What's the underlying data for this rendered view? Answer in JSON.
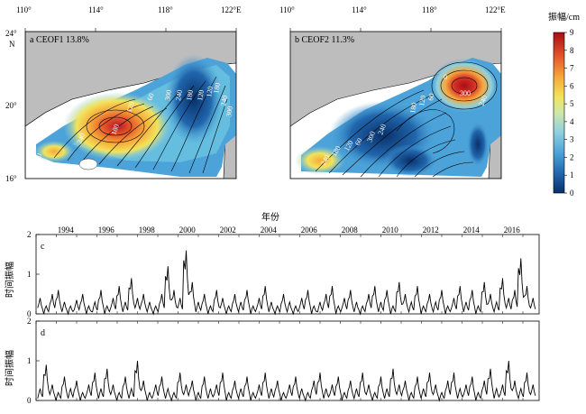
{
  "maps": {
    "lon_ticks": [
      "110°",
      "114°",
      "118°",
      "122°E"
    ],
    "lat_ticks": [
      "24°",
      "20°",
      "16°"
    ],
    "lat_suffix": "N",
    "panel_a": {
      "label": "a  CEOF1 13.8%",
      "contour_labels": [
        "0",
        "240",
        "180",
        "120",
        "60",
        "300",
        "240",
        "180",
        "120",
        "120",
        "180",
        "240",
        "300"
      ]
    },
    "panel_b": {
      "label": "b  CEOF2 11.3%",
      "contour_labels": [
        "0",
        "300",
        "240",
        "60",
        "120",
        "180",
        "240",
        "300",
        "60",
        "120",
        "180",
        "240"
      ]
    }
  },
  "colorbar": {
    "title": "振幅/cm",
    "ticks": [
      "9",
      "8",
      "7",
      "6",
      "5",
      "4",
      "3",
      "2",
      "1",
      "0"
    ],
    "colors": [
      "#08306b",
      "#1a5fb0",
      "#3d94d1",
      "#6cc3e0",
      "#a6dcd9",
      "#e4e868",
      "#f4b640",
      "#ee7a2d",
      "#d73027",
      "#a50f15"
    ]
  },
  "timeseries": {
    "year_label": "年份",
    "years": [
      "1994",
      "1996",
      "1998",
      "2000",
      "2002",
      "2004",
      "2006",
      "2008",
      "2010",
      "2012",
      "2014",
      "2016"
    ],
    "ylabel": "时间振幅",
    "ylim": [
      0,
      2
    ],
    "yticks": [
      "2",
      "1",
      "0"
    ],
    "panels": [
      {
        "label": "c"
      },
      {
        "label": "d"
      }
    ]
  },
  "chart_data": [
    {
      "type": "line",
      "title": "c",
      "xlabel": "年份",
      "ylabel": "时间振幅",
      "xlim": [
        1993,
        2017.8
      ],
      "ylim": [
        0,
        2
      ],
      "x": [
        1993.2,
        1993.5,
        1993.8,
        1994.1,
        1994.4,
        1994.7,
        1995.0,
        1995.3,
        1995.6,
        1995.9,
        1996.2,
        1996.5,
        1996.8,
        1997.1,
        1997.4,
        1997.7,
        1998.0,
        1998.3,
        1998.6,
        1998.9,
        1999.2,
        1999.5,
        1999.8,
        2000.1,
        2000.4,
        2000.7,
        2001.0,
        2001.3,
        2001.6,
        2001.9,
        2002.2,
        2002.5,
        2002.8,
        2003.1,
        2003.4,
        2003.7,
        2004.0,
        2004.3,
        2004.6,
        2004.9,
        2005.2,
        2005.5,
        2005.8,
        2006.1,
        2006.4,
        2006.7,
        2007.0,
        2007.3,
        2007.6,
        2007.9,
        2008.2,
        2008.5,
        2008.8,
        2009.1,
        2009.4,
        2009.7,
        2010.0,
        2010.3,
        2010.6,
        2010.9,
        2011.2,
        2011.5,
        2011.8,
        2012.1,
        2012.4,
        2012.7,
        2013.0,
        2013.3,
        2013.6,
        2013.9,
        2014.2,
        2014.5,
        2014.8,
        2015.1,
        2015.4,
        2015.7,
        2016.0,
        2016.3,
        2016.6,
        2016.9,
        2017.2,
        2017.5
      ],
      "values": [
        0.4,
        0.2,
        0.5,
        0.6,
        0.3,
        0.2,
        0.35,
        0.5,
        0.2,
        0.3,
        0.6,
        0.2,
        0.4,
        0.7,
        0.3,
        0.9,
        0.4,
        0.5,
        0.3,
        0.2,
        0.5,
        1.2,
        0.6,
        0.4,
        1.6,
        0.8,
        0.3,
        0.5,
        0.2,
        0.6,
        0.4,
        0.2,
        0.5,
        0.3,
        0.6,
        0.2,
        0.4,
        0.7,
        0.3,
        0.2,
        0.5,
        0.3,
        0.2,
        0.4,
        0.6,
        0.2,
        0.3,
        0.5,
        0.7,
        0.2,
        0.4,
        0.6,
        0.3,
        0.2,
        0.5,
        0.7,
        0.3,
        0.6,
        0.2,
        0.8,
        0.5,
        0.3,
        0.7,
        0.2,
        0.5,
        0.3,
        0.6,
        0.2,
        0.4,
        0.7,
        0.3,
        0.6,
        0.2,
        0.8,
        0.5,
        0.3,
        0.9,
        0.4,
        0.6,
        1.4,
        0.7,
        0.4
      ]
    },
    {
      "type": "line",
      "title": "d",
      "xlabel": "年份",
      "ylabel": "时间振幅",
      "xlim": [
        1993,
        2017.8
      ],
      "ylim": [
        0,
        2
      ],
      "x": [
        1993.2,
        1993.5,
        1993.8,
        1994.1,
        1994.4,
        1994.7,
        1995.0,
        1995.3,
        1995.6,
        1995.9,
        1996.2,
        1996.5,
        1996.8,
        1997.1,
        1997.4,
        1997.7,
        1998.0,
        1998.3,
        1998.6,
        1998.9,
        1999.2,
        1999.5,
        1999.8,
        2000.1,
        2000.4,
        2000.7,
        2001.0,
        2001.3,
        2001.6,
        2001.9,
        2002.2,
        2002.5,
        2002.8,
        2003.1,
        2003.4,
        2003.7,
        2004.0,
        2004.3,
        2004.6,
        2004.9,
        2005.2,
        2005.5,
        2005.8,
        2006.1,
        2006.4,
        2006.7,
        2007.0,
        2007.3,
        2007.6,
        2007.9,
        2008.2,
        2008.5,
        2008.8,
        2009.1,
        2009.4,
        2009.7,
        2010.0,
        2010.3,
        2010.6,
        2010.9,
        2011.2,
        2011.5,
        2011.8,
        2012.1,
        2012.4,
        2012.7,
        2013.0,
        2013.3,
        2013.6,
        2013.9,
        2014.2,
        2014.5,
        2014.8,
        2015.1,
        2015.4,
        2015.7,
        2016.0,
        2016.3,
        2016.6,
        2016.9,
        2017.2,
        2017.5
      ],
      "values": [
        0.3,
        0.9,
        0.4,
        0.2,
        0.6,
        0.3,
        0.5,
        0.2,
        0.4,
        0.7,
        0.3,
        0.8,
        0.4,
        0.2,
        0.6,
        0.3,
        1.0,
        0.5,
        0.2,
        0.4,
        0.6,
        0.3,
        0.2,
        0.7,
        0.4,
        0.5,
        0.2,
        0.6,
        0.3,
        0.4,
        0.7,
        0.2,
        0.5,
        0.3,
        0.6,
        0.2,
        0.4,
        0.7,
        0.3,
        0.5,
        0.2,
        0.4,
        0.6,
        0.3,
        0.2,
        0.5,
        0.7,
        0.3,
        0.4,
        0.6,
        0.2,
        0.5,
        0.3,
        0.7,
        0.4,
        0.2,
        0.6,
        0.3,
        0.8,
        0.4,
        0.5,
        0.2,
        0.6,
        0.3,
        0.7,
        0.4,
        0.2,
        0.5,
        0.7,
        0.3,
        0.4,
        0.6,
        0.2,
        0.5,
        0.8,
        0.3,
        0.4,
        1.0,
        0.5,
        0.3,
        0.7,
        0.4
      ]
    }
  ]
}
